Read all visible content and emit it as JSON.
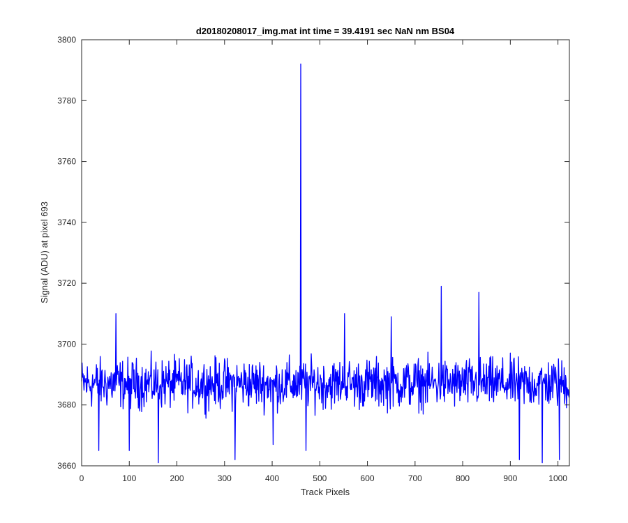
{
  "chart_data": {
    "type": "line",
    "title": "d20180208017_img.mat int time = 39.4191 sec  NaN nm BS04",
    "xlabel": "Track Pixels",
    "ylabel": "Signal (ADU) at pixel 693",
    "xlim": [
      0,
      1024
    ],
    "ylim": [
      3660,
      3800
    ],
    "xticks": [
      0,
      100,
      200,
      300,
      400,
      500,
      600,
      700,
      800,
      900,
      1000
    ],
    "yticks": [
      3660,
      3680,
      3700,
      3720,
      3740,
      3760,
      3780,
      3800
    ],
    "grid": false,
    "series": [
      {
        "color": "#0000ff",
        "x_start": 0,
        "x_step": 1,
        "baseline": 3687,
        "noise_amplitude": 10,
        "spikes": [
          {
            "x": 460,
            "y": 3792
          },
          {
            "x": 755,
            "y": 3719
          },
          {
            "x": 834,
            "y": 3717
          },
          {
            "x": 72,
            "y": 3710
          },
          {
            "x": 552,
            "y": 3710
          },
          {
            "x": 650,
            "y": 3709
          },
          {
            "x": 161,
            "y": 3661
          },
          {
            "x": 322,
            "y": 3662
          },
          {
            "x": 919,
            "y": 3662
          },
          {
            "x": 967,
            "y": 3661
          },
          {
            "x": 1003,
            "y": 3662
          },
          {
            "x": 100,
            "y": 3665
          },
          {
            "x": 36,
            "y": 3665
          },
          {
            "x": 471,
            "y": 3665
          },
          {
            "x": 402,
            "y": 3667
          }
        ]
      }
    ]
  }
}
